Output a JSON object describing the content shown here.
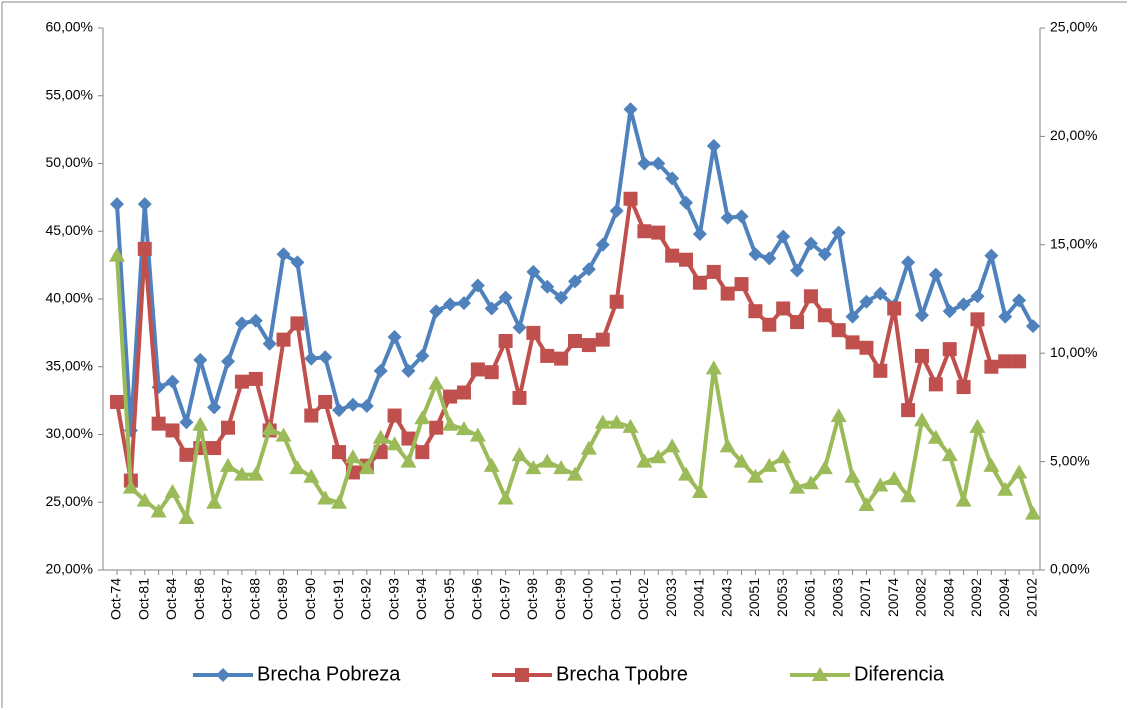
{
  "chart_data": {
    "type": "line",
    "categories": [
      "Oct-74",
      null,
      "Oct-81",
      null,
      "Oct-84",
      null,
      "Oct-86",
      null,
      "Oct-87",
      null,
      "Oct-88",
      null,
      "Oct-89",
      null,
      "Oct-90",
      null,
      "Oct-91",
      null,
      "Oct-92",
      null,
      "Oct-93",
      null,
      "Oct-94",
      null,
      "Oct-95",
      null,
      "Oct-96",
      null,
      "Oct-97",
      null,
      "Oct-98",
      null,
      "Oct-99",
      null,
      "Oct-00",
      null,
      "Oct-01",
      null,
      "Oct-02",
      null,
      "20033",
      null,
      "20041",
      null,
      "20043",
      null,
      "20051",
      null,
      "20053",
      null,
      "20061",
      null,
      "20063",
      null,
      "20071",
      null,
      "20074",
      null,
      "20082",
      null,
      "20084",
      null,
      "20092",
      null,
      "20094",
      null,
      "20102"
    ],
    "series": [
      {
        "name": "Brecha Pobreza",
        "color": "#4f81bd",
        "marker": "diamond",
        "values": [
          47,
          30.3,
          47,
          33.5,
          33.9,
          30.9,
          35.5,
          32,
          35.4,
          38.2,
          38.4,
          36.7,
          43.3,
          42.7,
          35.6,
          35.7,
          31.8,
          32.2,
          32.1,
          34.7,
          37.2,
          34.7,
          35.8,
          39.1,
          39.6,
          39.7,
          41,
          39.3,
          40.1,
          37.9,
          42,
          40.9,
          40.1,
          41.3,
          42.2,
          44,
          46.5,
          54,
          50,
          50,
          48.9,
          47.1,
          44.8,
          51.3,
          46,
          46.1,
          43.3,
          43,
          44.6,
          42.1,
          44.1,
          43.3,
          44.9,
          38.7,
          39.8,
          40.4,
          39.5,
          42.7,
          38.8,
          41.8,
          39.1,
          39.6,
          40.2,
          43.2,
          38.7,
          39.9,
          38
        ]
      },
      {
        "name": "Brecha Tpobre",
        "color": "#c0504d",
        "marker": "square",
        "values": [
          32.4,
          26.6,
          43.7,
          30.8,
          30.3,
          28.5,
          29,
          29,
          30.5,
          33.9,
          34.1,
          30.3,
          37,
          38.2,
          31.4,
          32.4,
          28.7,
          27.2,
          27.7,
          28.7,
          31.4,
          29.7,
          28.7,
          30.5,
          32.8,
          33.1,
          34.8,
          34.6,
          36.9,
          32.7,
          37.5,
          35.8,
          35.6,
          36.9,
          36.6,
          37,
          39.8,
          47.4,
          45,
          44.9,
          43.2,
          42.9,
          41.2,
          42,
          40.4,
          41.1,
          39.1,
          38.1,
          39.3,
          38.3,
          40.2,
          38.8,
          37.7,
          36.8,
          36.4,
          34.7,
          39.3,
          31.8,
          35.8,
          33.7,
          36.3,
          33.5,
          38.5,
          35,
          35.4,
          35.4,
          null
        ]
      },
      {
        "name": "Diferencia",
        "color": "#9bbb59",
        "marker": "triangle",
        "axis": "y2",
        "values": [
          14.5,
          3.8,
          3.2,
          2.7,
          3.6,
          2.4,
          6.7,
          3.1,
          4.8,
          4.4,
          4.4,
          6.5,
          6.2,
          4.7,
          4.3,
          3.3,
          3.1,
          5.2,
          4.7,
          6.1,
          5.8,
          5,
          7,
          8.6,
          6.7,
          6.5,
          6.2,
          4.8,
          3.3,
          5.3,
          4.7,
          5,
          4.7,
          4.4,
          5.6,
          6.8,
          6.8,
          6.6,
          5,
          5.2,
          5.7,
          4.4,
          3.6,
          9.3,
          5.7,
          5,
          4.3,
          4.8,
          5.2,
          3.8,
          4,
          4.7,
          7.1,
          4.3,
          3,
          3.9,
          4.2,
          3.4,
          6.9,
          6.1,
          5.3,
          3.2,
          6.6,
          4.8,
          3.7,
          4.5,
          2.6
        ]
      }
    ],
    "ylim": [
      20,
      60
    ],
    "yticks": [
      {
        "value": 20,
        "label": "20,00%"
      },
      {
        "value": 25,
        "label": "25,00%"
      },
      {
        "value": 30,
        "label": "30,00%"
      },
      {
        "value": 35,
        "label": "35,00%"
      },
      {
        "value": 40,
        "label": "40,00%"
      },
      {
        "value": 45,
        "label": "45,00%"
      },
      {
        "value": 50,
        "label": "50,00%"
      },
      {
        "value": 55,
        "label": "55,00%"
      },
      {
        "value": 60,
        "label": "60,00%"
      }
    ],
    "y2lim": [
      0,
      25
    ],
    "y2ticks": [
      {
        "value": 0,
        "label": "0,00%"
      },
      {
        "value": 5,
        "label": "5,00%"
      },
      {
        "value": 10,
        "label": "10,00%"
      },
      {
        "value": 15,
        "label": "15,00%"
      },
      {
        "value": 20,
        "label": "20,00%"
      },
      {
        "value": 25,
        "label": "25,00%"
      }
    ],
    "grid": false,
    "legend": "bottom"
  }
}
